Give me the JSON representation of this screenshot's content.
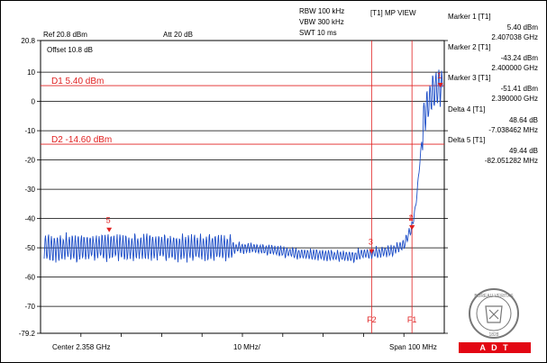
{
  "header": {
    "ref": "Ref 20.8 dBm",
    "att": "Att 20 dB",
    "rbw": "RBW 100 kHz",
    "vbw": "VBW 300 kHz",
    "swt": "SWT 10 ms",
    "view": "[T1] MP VIEW",
    "offset": "Offset 10.8 dB"
  },
  "markers_panel": [
    {
      "title": "Marker 1 [T1]",
      "value": "5.40 dBm",
      "freq": "2.407038 GHz"
    },
    {
      "title": "Marker 2 [T1]",
      "value": "-43.24 dBm",
      "freq": "2.400000 GHz"
    },
    {
      "title": "Marker 3 [T1]",
      "value": "-51.41 dBm",
      "freq": "2.390000 GHz"
    },
    {
      "title": "Delta 4 [T1]",
      "value": "48.64 dB",
      "freq": "-7.038462 MHz"
    },
    {
      "title": "Delta 5 [T1]",
      "value": "49.44 dB",
      "freq": "-82.051282 MHz"
    }
  ],
  "footer": {
    "center": "Center 2.358 GHz",
    "div": "10 MHz/",
    "span": "Span 100 MHz"
  },
  "logo": {
    "text": "BUREAU VERITAS",
    "year": "1828",
    "brand": "A D T"
  },
  "colors": {
    "trace": "#1f4fc8",
    "marker": "#e02020",
    "grid": "#000000"
  },
  "chart_data": {
    "type": "line",
    "xlabel": "",
    "ylabel": "",
    "ylim": [
      -79.2,
      20.8
    ],
    "xlim": [
      2.308,
      2.408
    ],
    "x_unit": "GHz",
    "y_unit": "dBm",
    "y_ticks": [
      "20.8",
      "10",
      "0",
      "-10",
      "-20",
      "-30",
      "-40",
      "-50",
      "-60",
      "-70",
      "-79.2"
    ],
    "y_tick_values": [
      20.8,
      10,
      0,
      -10,
      -20,
      -30,
      -40,
      -50,
      -60,
      -70,
      -79.2
    ],
    "series": [
      {
        "x": [
          2.308,
          2.335,
          2.36,
          2.372,
          2.385,
          2.388,
          2.39,
          2.395,
          2.398,
          2.4,
          2.401,
          2.402,
          2.403,
          2.405,
          2.407,
          2.408
        ],
        "y": [
          -50,
          -50,
          -50,
          -52,
          -53,
          -52,
          -52,
          -51,
          -49,
          -43,
          -35,
          -20,
          -5,
          3,
          5.4,
          3
        ]
      }
    ],
    "display_lines": [
      {
        "label": "D1 5.40 dBm",
        "y": 5.4
      },
      {
        "label": "D2 -14.60 dBm",
        "y": -14.6
      }
    ],
    "freq_lines": [
      {
        "label": "F2",
        "x": 2.39
      },
      {
        "label": "F1",
        "x": 2.4
      }
    ],
    "markers": [
      {
        "label": "1",
        "x": 2.407038,
        "y": 5.4
      },
      {
        "label": "2",
        "x": 2.4,
        "y": -43.24
      },
      {
        "label": "3",
        "x": 2.39,
        "y": -51.41
      },
      {
        "label": "4",
        "x": 2.4,
        "y": -43.24
      },
      {
        "label": "5",
        "x": 2.325,
        "y": -44.04
      }
    ]
  }
}
